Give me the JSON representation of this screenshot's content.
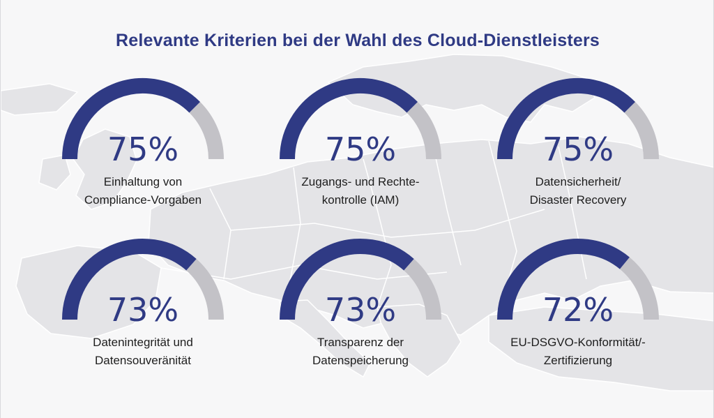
{
  "chart_data": {
    "type": "gauge",
    "title": "Relevante Kriterien bei der Wahl des Cloud-Dienstleisters",
    "items": [
      {
        "value": 75,
        "display": "75%",
        "label_lines": [
          "Einhaltung von",
          "Compliance-Vorgaben"
        ]
      },
      {
        "value": 75,
        "display": "75%",
        "label_lines": [
          "Zugangs- und Rechte-",
          "kontrolle (IAM)"
        ]
      },
      {
        "value": 75,
        "display": "75%",
        "label_lines": [
          "Datensicherheit/",
          "Disaster Recovery"
        ]
      },
      {
        "value": 73,
        "display": "73%",
        "label_lines": [
          "Datenintegrität und",
          "Datensouveränität"
        ]
      },
      {
        "value": 73,
        "display": "73%",
        "label_lines": [
          "Transparenz der",
          "Datenspeicherung"
        ]
      },
      {
        "value": 72,
        "display": "72%",
        "label_lines": [
          "EU-DSGVO-Konformität/-",
          "Zertifizierung"
        ]
      }
    ],
    "max": 100
  },
  "colors": {
    "filled": "#2f3a84",
    "track": "#c3c2c7",
    "percent_text": "#2f3a84",
    "label_text": "#1e1e1e",
    "map_land": "#e4e4e7",
    "map_border": "#ffffff"
  }
}
